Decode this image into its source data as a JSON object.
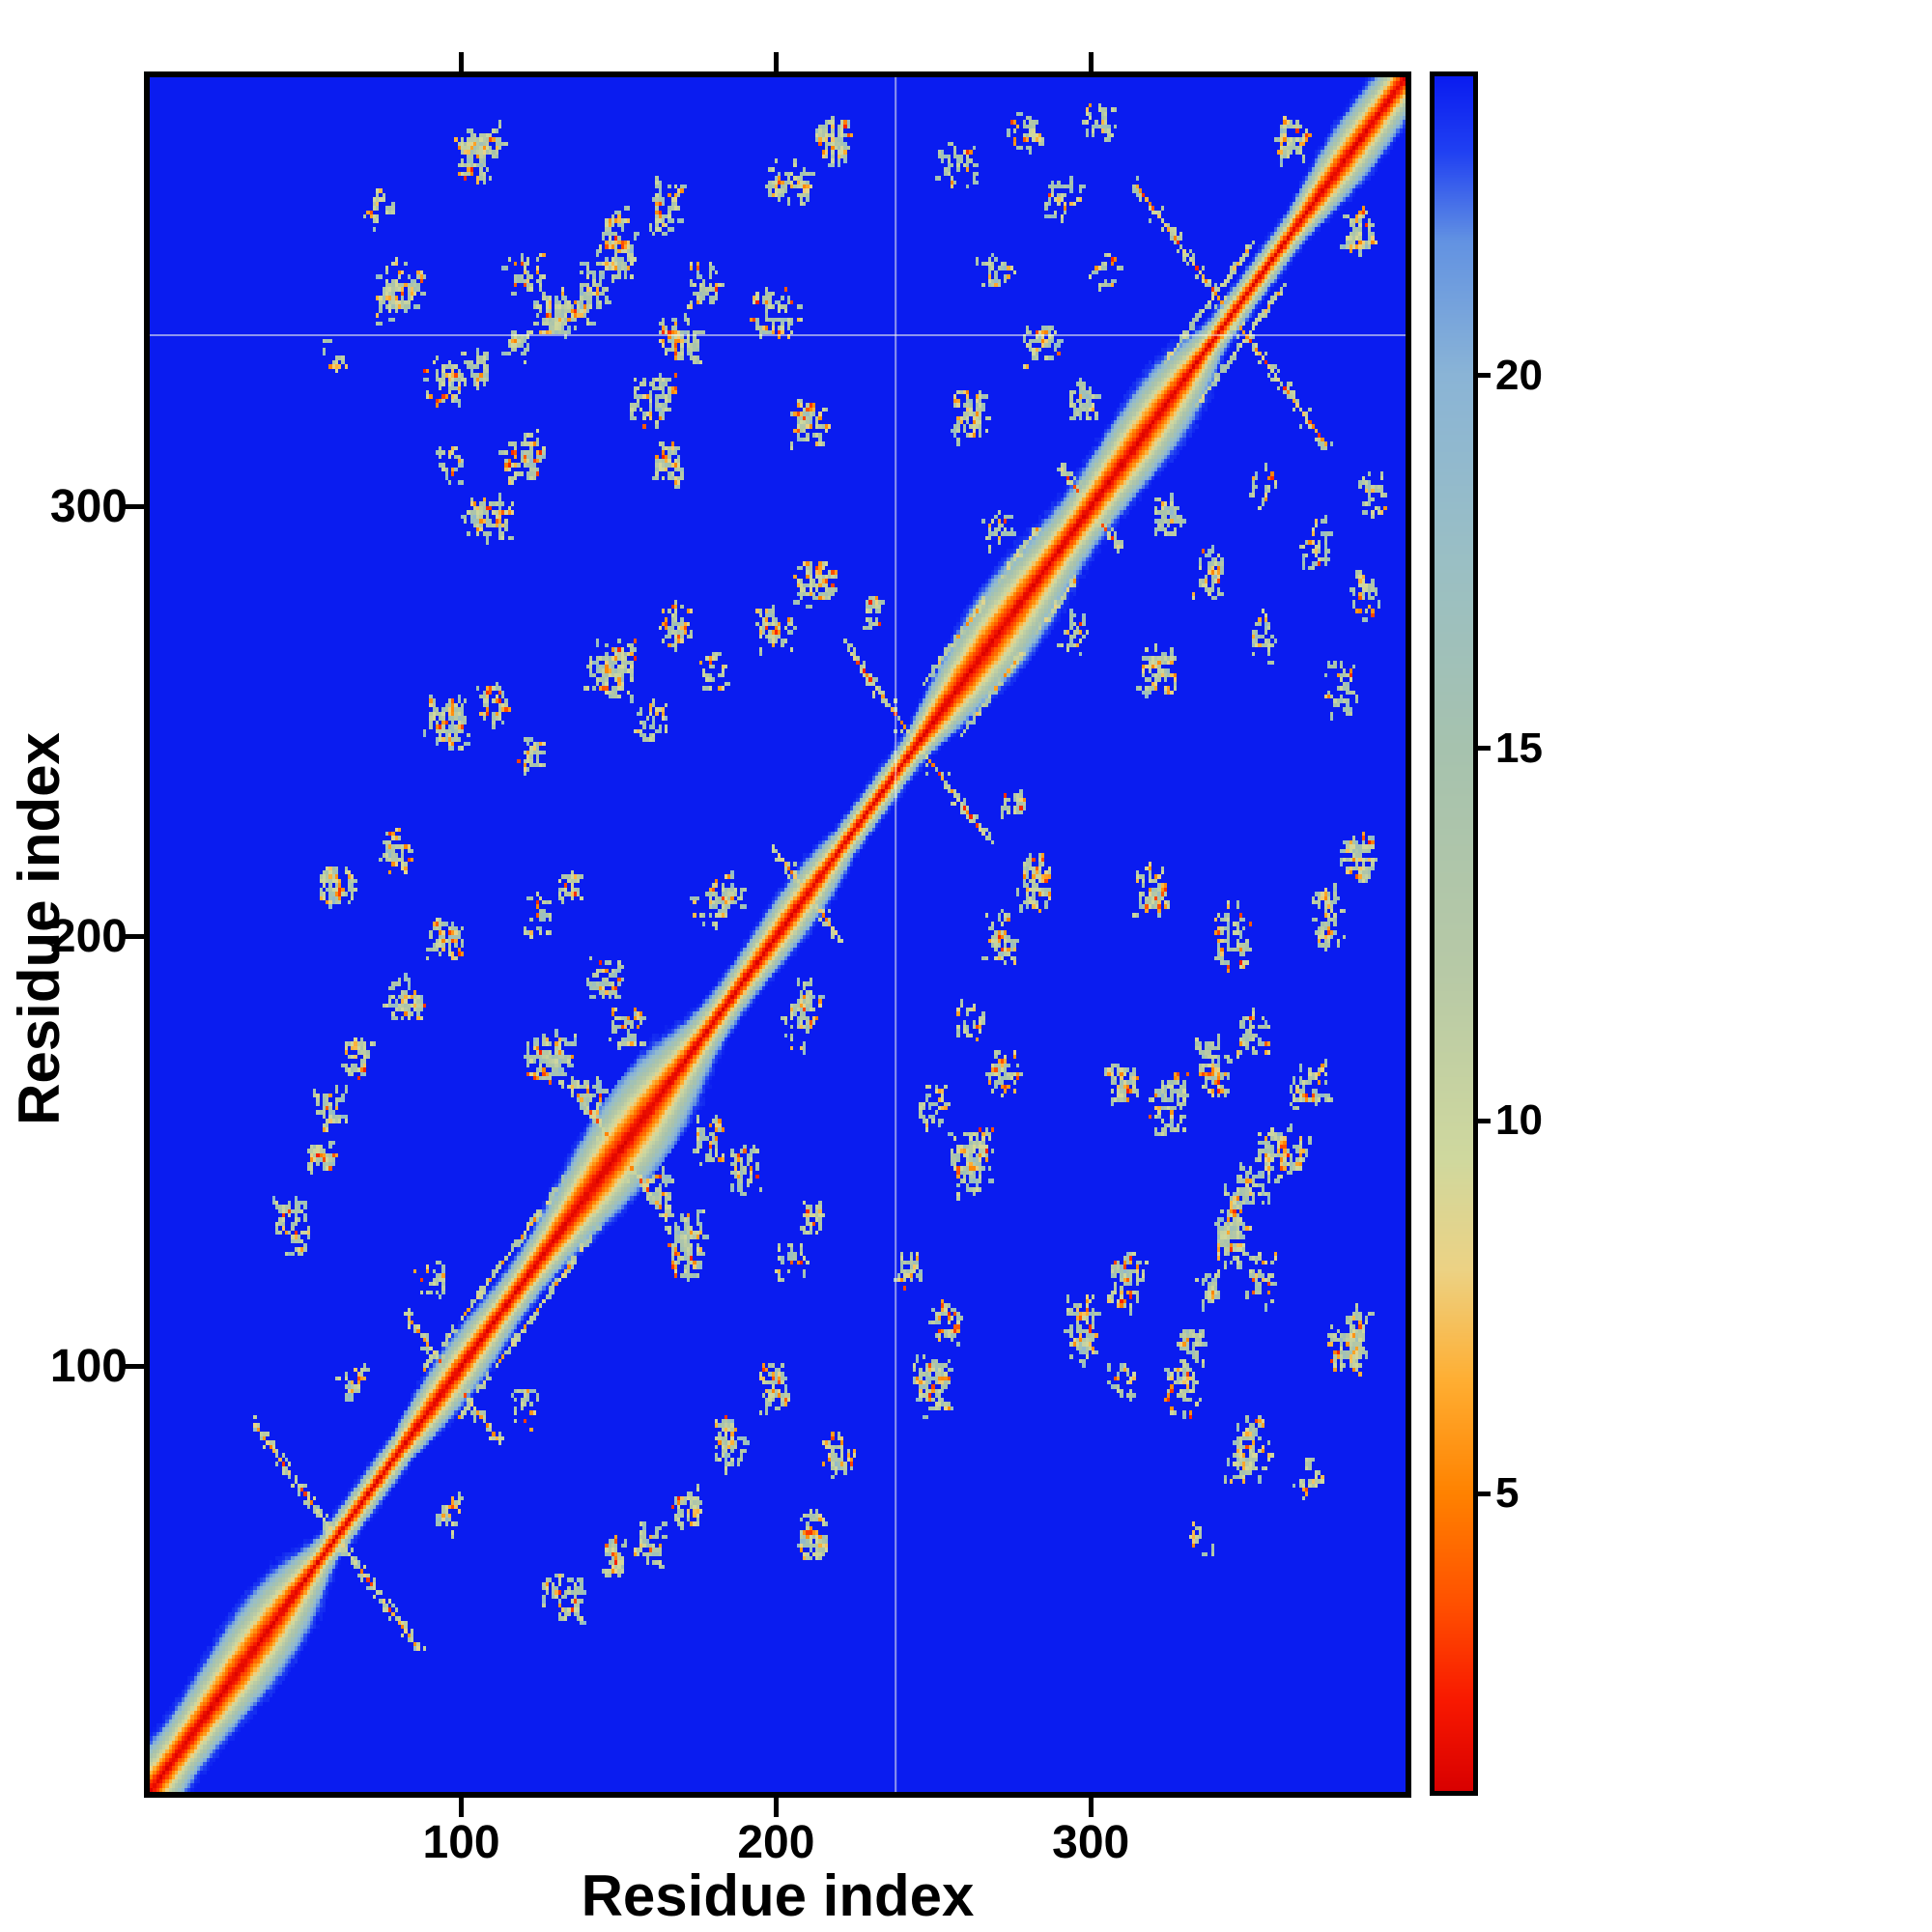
{
  "chart_data": {
    "type": "heatmap",
    "title": "",
    "xlabel": "Residue index",
    "ylabel": "Residue index",
    "x_ticks": [
      100,
      200,
      300
    ],
    "y_ticks": [
      100,
      200,
      300
    ],
    "n_residues": 400,
    "xlim": [
      1,
      400
    ],
    "ylim": [
      1,
      400
    ],
    "vmin": 1,
    "vmax": 24,
    "grid": false,
    "legend": "colorbar-right",
    "colorbar_ticks": [
      5,
      10,
      15,
      20
    ],
    "colormap": [
      [
        1,
        "#d80000"
      ],
      [
        2.2,
        "#f81800"
      ],
      [
        3.5,
        "#ff5000"
      ],
      [
        5,
        "#ff8200"
      ],
      [
        6.5,
        "#ffae32"
      ],
      [
        8,
        "#ecd284"
      ],
      [
        9.5,
        "#cfd89e"
      ],
      [
        12,
        "#b7c9a6"
      ],
      [
        15,
        "#a6c2ae"
      ],
      [
        17.5,
        "#9abfc4"
      ],
      [
        20,
        "#8ab4d6"
      ],
      [
        21.8,
        "#6292e2"
      ],
      [
        23,
        "#2040f2"
      ],
      [
        24,
        "#0a1cf0"
      ]
    ],
    "background_color": "#0a1cf0",
    "frame_color": "#000000",
    "diagonal": {
      "description": "red self-distance diagonal from (1,1) to (400,400) with orange-to-sage halo",
      "band_table": [
        1.3,
        2.1,
        3.4,
        5.0,
        6.8,
        8.8,
        11.0,
        13.4,
        16.0,
        18.6,
        21.2,
        22.9,
        23.6,
        23.9
      ],
      "band_profile": [
        0.9,
        0.38,
        0.045,
        1.3,
        0.26,
        0.11,
        4.1
      ]
    },
    "crossings": [
      [
        60,
        26
      ],
      [
        97,
        15
      ],
      [
        150,
        13
      ],
      [
        210,
        10
      ],
      [
        245,
        22
      ],
      [
        300,
        9
      ],
      [
        345,
        30
      ]
    ],
    "streaks": [
      [
        110,
        11,
        22
      ],
      [
        265,
        12,
        18
      ],
      [
        338,
        10,
        14
      ]
    ],
    "clusters": [
      [
        105,
        382,
        7,
        6,
        0.7
      ],
      [
        80,
        350,
        8,
        7,
        0.55
      ],
      [
        95,
        330,
        7,
        6,
        0.5
      ],
      [
        120,
        355,
        6,
        5,
        0.55
      ],
      [
        135,
        345,
        6,
        5,
        0.5
      ],
      [
        150,
        357,
        6,
        5,
        0.55
      ],
      [
        165,
        370,
        6,
        6,
        0.65
      ],
      [
        168,
        340,
        5,
        5,
        0.5
      ],
      [
        166,
        310,
        5,
        5,
        0.6
      ],
      [
        60,
        335,
        4,
        4,
        0.4
      ],
      [
        74,
        369,
        5,
        5,
        0.45
      ],
      [
        205,
        375,
        8,
        6,
        0.6
      ],
      [
        218,
        385,
        6,
        5,
        0.6
      ],
      [
        200,
        345,
        7,
        6,
        0.5
      ],
      [
        210,
        320,
        6,
        6,
        0.55
      ],
      [
        258,
        380,
        7,
        5,
        0.6
      ],
      [
        280,
        388,
        6,
        4,
        0.6
      ],
      [
        292,
        372,
        6,
        5,
        0.55
      ],
      [
        303,
        390,
        5,
        4,
        0.6
      ],
      [
        262,
        322,
        7,
        6,
        0.55
      ],
      [
        285,
        338,
        6,
        5,
        0.55
      ],
      [
        298,
        325,
        5,
        5,
        0.5
      ],
      [
        270,
        355,
        6,
        5,
        0.45
      ],
      [
        305,
        355,
        5,
        4,
        0.4
      ],
      [
        365,
        385,
        6,
        5,
        0.6
      ],
      [
        105,
        332,
        4,
        4,
        0.6
      ],
      [
        118,
        338,
        4,
        4,
        0.6
      ],
      [
        130,
        344,
        4,
        4,
        0.6
      ],
      [
        142,
        350,
        4,
        4,
        0.6
      ],
      [
        95,
        250,
        7,
        7,
        0.6
      ],
      [
        110,
        255,
        6,
        5,
        0.55
      ],
      [
        122,
        243,
        5,
        5,
        0.5
      ],
      [
        60,
        212,
        6,
        5,
        0.5
      ],
      [
        78,
        220,
        6,
        5,
        0.45
      ],
      [
        148,
        262,
        8,
        7,
        0.6
      ],
      [
        160,
        250,
        6,
        5,
        0.55
      ],
      [
        168,
        273,
        6,
        5,
        0.5
      ],
      [
        180,
        262,
        5,
        5,
        0.45
      ],
      [
        200,
        272,
        6,
        5,
        0.5
      ],
      [
        212,
        282,
        6,
        5,
        0.5
      ],
      [
        231,
        276,
        4,
        4,
        0.75
      ],
      [
        270,
        295,
        5,
        4,
        0.45
      ],
      [
        45,
        135,
        5,
        5,
        0.45
      ],
      [
        58,
        160,
        6,
        5,
        0.5
      ],
      [
        55,
        148,
        5,
        4,
        0.45
      ],
      [
        68,
        172,
        6,
        5,
        0.5
      ],
      [
        82,
        185,
        6,
        5,
        0.5
      ],
      [
        95,
        200,
        6,
        5,
        0.55
      ],
      [
        128,
        172,
        8,
        7,
        0.65
      ],
      [
        140,
        163,
        6,
        5,
        0.6
      ],
      [
        152,
        178,
        6,
        5,
        0.6
      ],
      [
        145,
        190,
        6,
        5,
        0.55
      ],
      [
        48,
        128,
        4,
        4,
        0.4
      ],
      [
        125,
        205,
        5,
        5,
        0.5
      ],
      [
        135,
        212,
        5,
        4,
        0.5
      ],
      [
        179,
        206,
        6,
        5,
        0.45
      ],
      [
        185,
        210,
        5,
        4,
        0.45
      ],
      [
        108,
        298,
        8,
        6,
        0.55
      ],
      [
        120,
        312,
        7,
        6,
        0.55
      ],
      [
        160,
        325,
        8,
        6,
        0.55
      ],
      [
        172,
        338,
        6,
        5,
        0.55
      ],
      [
        178,
        352,
        6,
        5,
        0.5
      ],
      [
        142,
        355,
        6,
        5,
        0.5
      ],
      [
        150,
        365,
        5,
        5,
        0.5
      ],
      [
        128,
        345,
        5,
        4,
        0.45
      ],
      [
        95,
        310,
        5,
        4,
        0.4
      ],
      [
        110,
        385,
        4,
        4,
        0.4
      ],
      [
        90,
        120,
        5,
        4,
        0.5
      ],
      [
        65,
        95,
        4,
        4,
        0.45
      ]
    ],
    "gap_lines": {
      "vertical_residue": 238,
      "horizontal_residue": 340
    },
    "seed": 11
  }
}
